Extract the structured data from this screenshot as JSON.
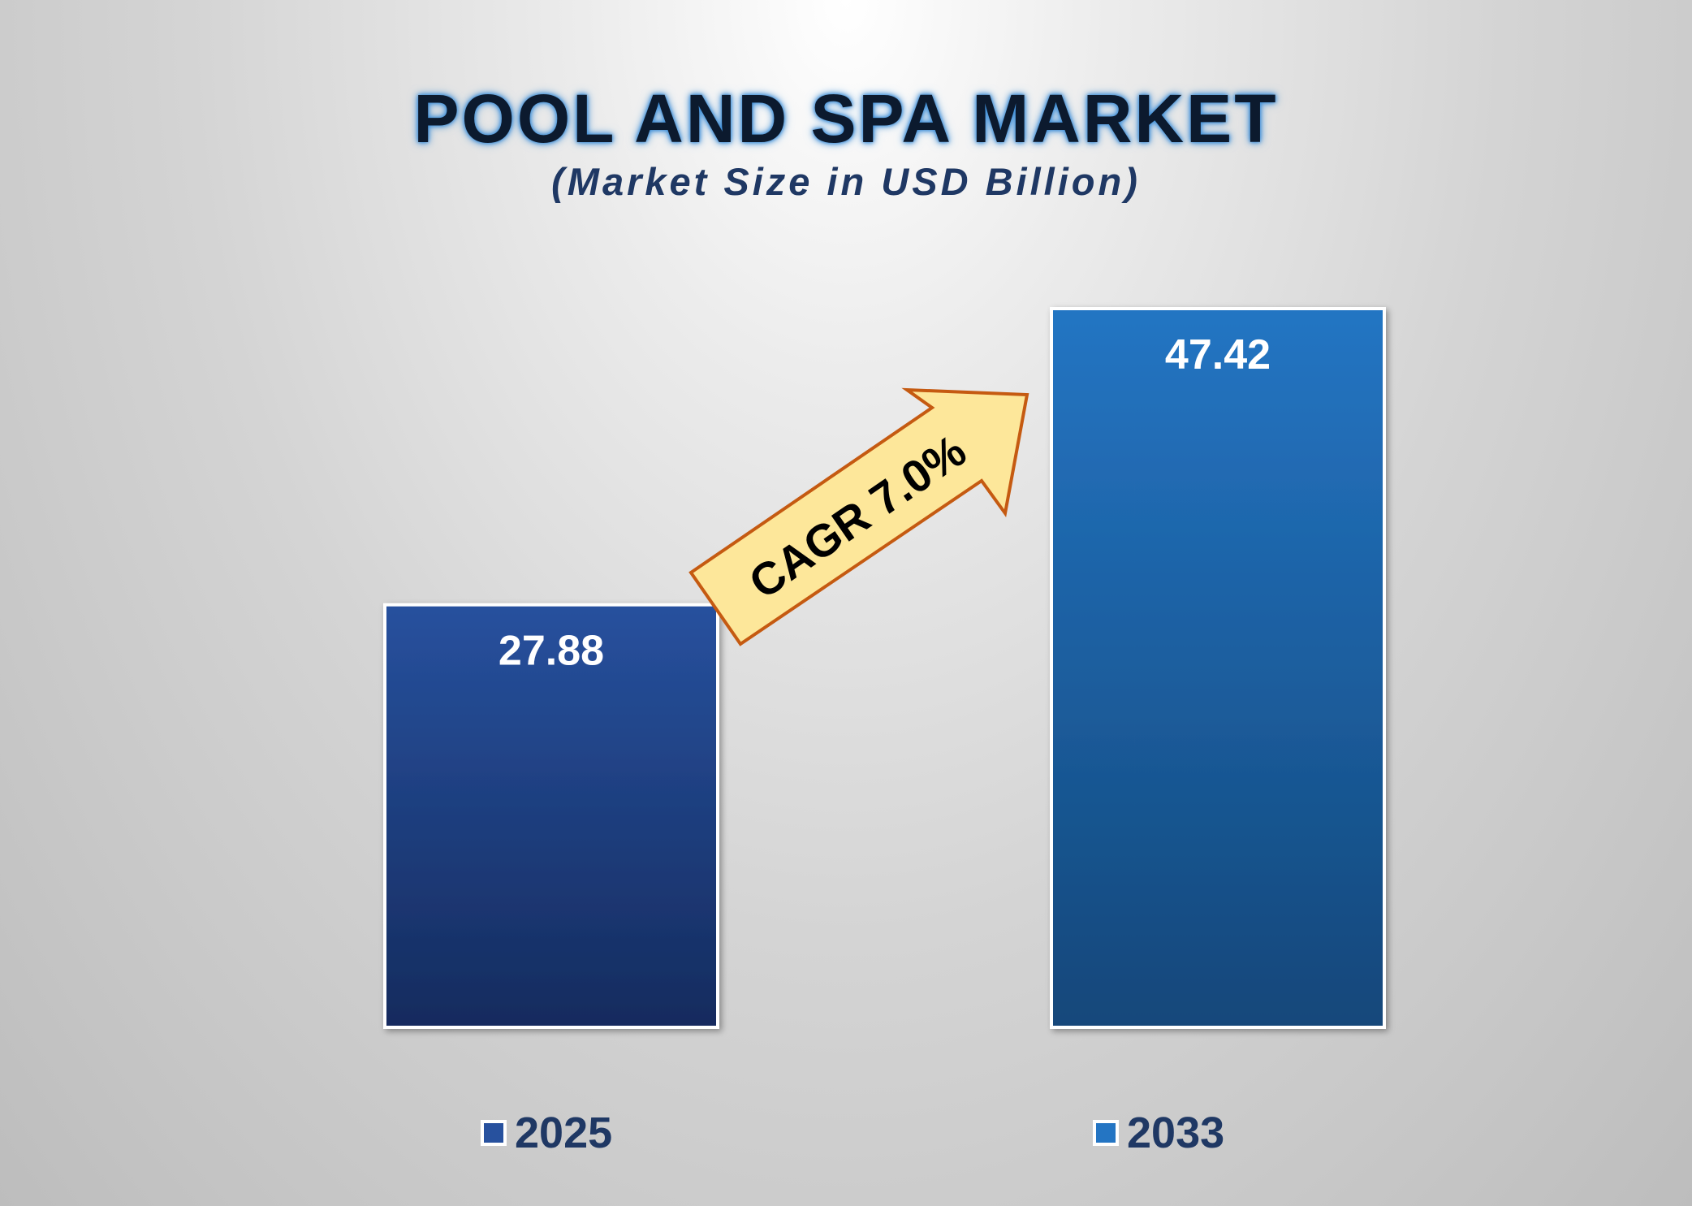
{
  "chart_data": {
    "type": "bar",
    "title": "POOL AND SPA MARKET",
    "subtitle": "(Market Size in USD Billion)",
    "categories": [
      "2025",
      "2033"
    ],
    "values": [
      27.88,
      47.42
    ],
    "value_labels": [
      "27.88",
      "47.42"
    ],
    "ylim": [
      0,
      47.42
    ],
    "grid": false,
    "legend": "bottom",
    "annotation": "CAGR 7.0%"
  },
  "colors": {
    "bar_2025_top": "#27519e",
    "bar_2025_bottom": "#152b5e",
    "bar_2033_top": "#2475c3",
    "bar_2033_bottom": "#13477a",
    "arrow_fill": "#fde79a",
    "arrow_stroke": "#c55a11",
    "title": "#0c1a2e",
    "subtitle": "#1f3864"
  }
}
